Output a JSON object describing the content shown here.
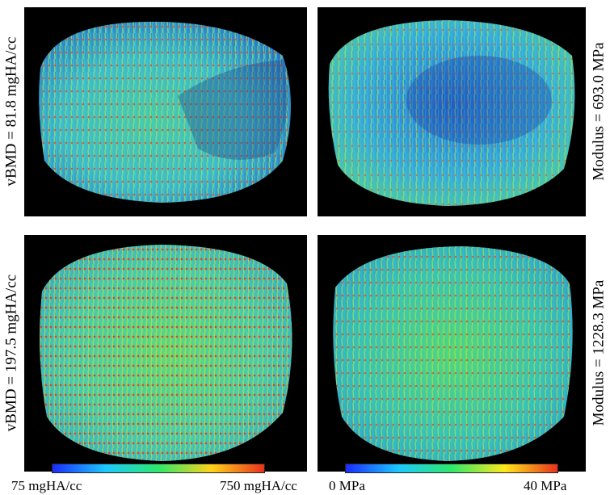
{
  "panels": {
    "top_left": {
      "label": "vBMD = 81.8 mgHA/cc"
    },
    "top_right": {
      "label": "Modulus = 693.0 MPa"
    },
    "bottom_left": {
      "label": "vBMD = 197.5 mgHA/cc"
    },
    "bottom_right": {
      "label": "Modulus = 1228.3 MPa"
    }
  },
  "colorbars": {
    "density": {
      "min_label": "75 mgHA/cc",
      "max_label": "750 mgHA/cc",
      "colors": [
        "#1a2cff",
        "#1cc8ff",
        "#2ee86a",
        "#ffd21a",
        "#e8321c"
      ]
    },
    "modulus": {
      "min_label": "0 MPa",
      "max_label": "40 MPa",
      "colors": [
        "#1a2cff",
        "#1cc8ff",
        "#2ee86a",
        "#ffe81a",
        "#e8321c"
      ]
    }
  }
}
